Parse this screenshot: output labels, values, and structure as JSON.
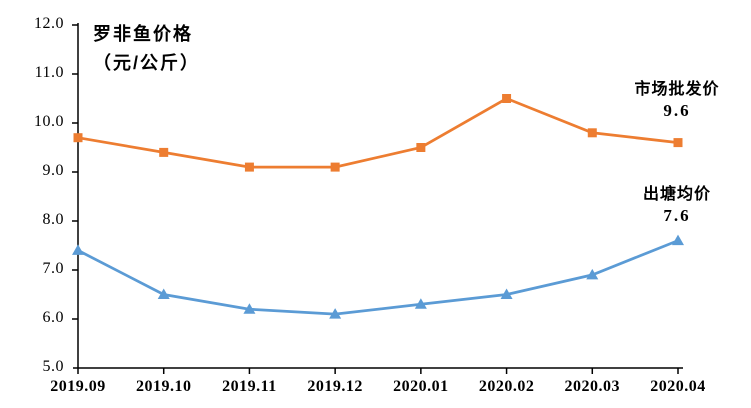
{
  "chart": {
    "title_line1": "罗非鱼价格",
    "title_line2": "（元/公斤）",
    "series_labels": {
      "wholesale": {
        "name": "市场批发价",
        "value": "9.6"
      },
      "pond": {
        "name": "出塘均价",
        "value": "7.6"
      }
    }
  },
  "chart_data": {
    "type": "line",
    "title": "罗非鱼价格（元/公斤）",
    "categories": [
      "2019.09",
      "2019.10",
      "2019.11",
      "2019.12",
      "2020.01",
      "2020.02",
      "2020.03",
      "2020.04"
    ],
    "series": [
      {
        "name": "市场批发价",
        "values": [
          9.7,
          9.4,
          9.1,
          9.1,
          9.5,
          10.5,
          9.8,
          9.6
        ],
        "color": "#ED7D31",
        "marker": "square",
        "end_label": "9.6"
      },
      {
        "name": "出塘均价",
        "values": [
          7.4,
          6.5,
          6.2,
          6.1,
          6.3,
          6.5,
          6.9,
          7.6
        ],
        "color": "#5B9BD5",
        "marker": "triangle",
        "end_label": "7.6"
      }
    ],
    "xlabel": "",
    "ylabel": "元/公斤",
    "ylim": [
      5.0,
      12.0
    ],
    "ytick_step": 1.0,
    "ytick_labels": [
      "5.0",
      "6.0",
      "7.0",
      "8.0",
      "9.0",
      "10.0",
      "11.0",
      "12.0"
    ],
    "grid": false,
    "legend_position": "labels-at-line-end",
    "axis_color": "#000000",
    "background_color": "#FFFFFF"
  }
}
